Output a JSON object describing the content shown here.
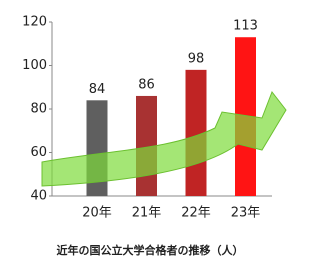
{
  "chart_data": {
    "type": "bar",
    "title": "近年の国公立大学合格者の推移（人）",
    "categories": [
      "20年",
      "21年",
      "22年",
      "23年"
    ],
    "values": [
      84,
      86,
      98,
      113
    ],
    "colors": [
      "#5f5f5f",
      "#a83232",
      "#c02424",
      "#ff1414"
    ],
    "ylim": [
      40,
      120
    ],
    "yticks": [
      40,
      60,
      80,
      100,
      120
    ],
    "grid": false
  }
}
